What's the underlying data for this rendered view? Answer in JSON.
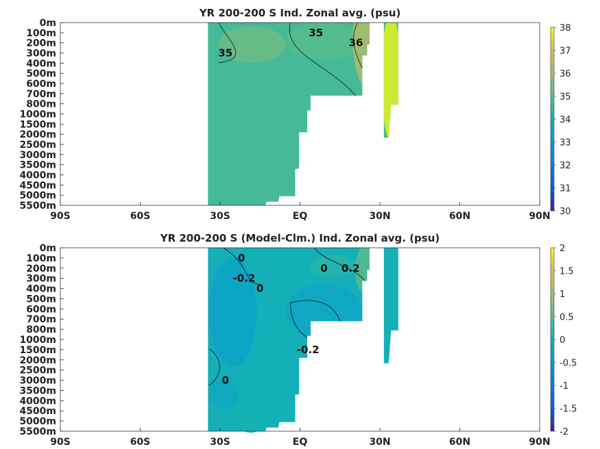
{
  "chart_data": [
    {
      "type": "heatmap",
      "title": "YR 200-200 S Ind. Zonal avg. (psu)",
      "x_ticks": [
        "90S",
        "60S",
        "30S",
        "EQ",
        "30N",
        "60N",
        "90N"
      ],
      "x_tick_values": [
        -90,
        -60,
        -30,
        0,
        30,
        60,
        90
      ],
      "xlim": [
        -90,
        90
      ],
      "y_ticks": [
        "0m",
        "100m",
        "200m",
        "300m",
        "400m",
        "500m",
        "600m",
        "700m",
        "800m",
        "1000m",
        "1500m",
        "2000m",
        "2500m",
        "3000m",
        "3500m",
        "4000m",
        "4500m",
        "5000m",
        "5500m"
      ],
      "colorbar": {
        "min": 30,
        "max": 38,
        "ticks": [
          "38",
          "37",
          "36",
          "35",
          "34",
          "33",
          "32",
          "31",
          "30"
        ],
        "tick_values": [
          38,
          37,
          36,
          35,
          34,
          33,
          32,
          31,
          30
        ],
        "colormap": "parula"
      },
      "background_value": 34.7,
      "contour_labels": [
        {
          "text": "35",
          "lat": 6,
          "depth": "100m"
        },
        {
          "text": "35",
          "lat": -28,
          "depth": "300m"
        },
        {
          "text": "36",
          "lat": 21,
          "depth": "200m"
        }
      ]
    },
    {
      "type": "heatmap",
      "title": "YR 200-200 S (Model-Clm.) Ind. Zonal avg. (psu)",
      "x_ticks": [
        "90S",
        "60S",
        "30S",
        "EQ",
        "30N",
        "60N",
        "90N"
      ],
      "x_tick_values": [
        -90,
        -60,
        -30,
        0,
        30,
        60,
        90
      ],
      "xlim": [
        -90,
        90
      ],
      "y_ticks": [
        "0m",
        "100m",
        "200m",
        "300m",
        "400m",
        "500m",
        "600m",
        "700m",
        "800m",
        "1000m",
        "1500m",
        "2000m",
        "2500m",
        "3000m",
        "3500m",
        "4000m",
        "4500m",
        "5000m",
        "5500m"
      ],
      "colorbar": {
        "min": -2,
        "max": 2,
        "ticks": [
          "2",
          "1.5",
          "1",
          "0.5",
          "0",
          "-0.5",
          "-1",
          "-1.5",
          "-2"
        ],
        "tick_values": [
          2,
          1.5,
          1,
          0.5,
          0,
          -0.5,
          -1,
          -1.5,
          -2
        ],
        "colormap": "parula"
      },
      "background_value": -0.05,
      "contour_labels": [
        {
          "text": "0",
          "lat": -22,
          "depth": "100m"
        },
        {
          "text": "-0.2",
          "lat": -21,
          "depth": "300m"
        },
        {
          "text": "0",
          "lat": -15,
          "depth": "400m"
        },
        {
          "text": "0",
          "lat": 9,
          "depth": "200m"
        },
        {
          "text": "0.2",
          "lat": 19,
          "depth": "200m"
        },
        {
          "text": "-0.2",
          "lat": 3,
          "depth": "1500m"
        },
        {
          "text": "0",
          "lat": -28,
          "depth": "3000m"
        }
      ]
    }
  ]
}
